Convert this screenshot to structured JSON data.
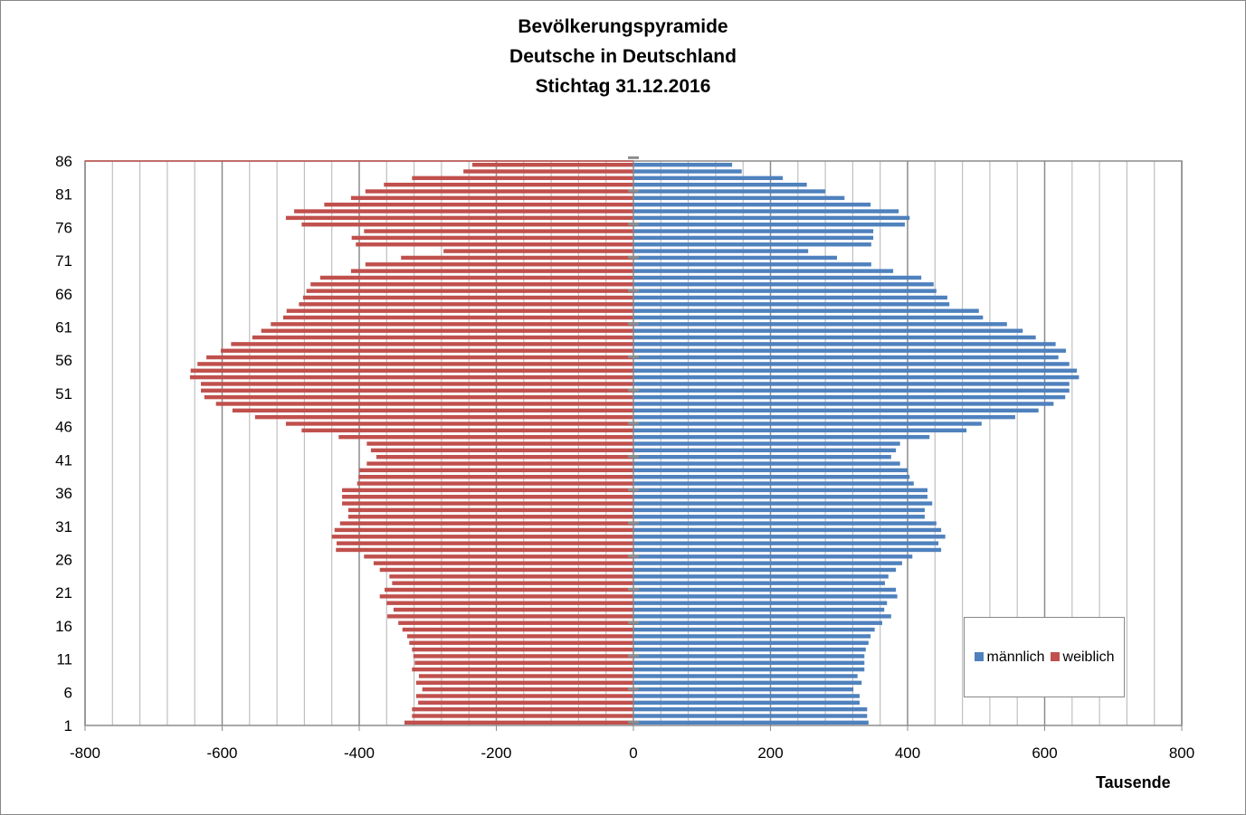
{
  "chart_data": {
    "type": "bar",
    "orientation": "horizontal-pyramid",
    "title": [
      "Bevölkerungspyramide",
      "Deutsche in Deutschland",
      "Stichtag 31.12.2016"
    ],
    "xlabel": "Tausende",
    "ylabel": "",
    "xlim": [
      -800,
      800
    ],
    "xticks": [
      -800,
      -600,
      -400,
      -200,
      0,
      200,
      400,
      600,
      800
    ],
    "ytick_labels": [
      1,
      6,
      11,
      16,
      21,
      26,
      31,
      36,
      41,
      46,
      51,
      56,
      61,
      66,
      71,
      76,
      81,
      86
    ],
    "grid": true,
    "legend_position": "bottom-right",
    "colors": {
      "male": "#4f81bd",
      "female": "#c0504d"
    },
    "ages": [
      1,
      2,
      3,
      4,
      5,
      6,
      7,
      8,
      9,
      10,
      11,
      12,
      13,
      14,
      15,
      16,
      17,
      18,
      19,
      20,
      21,
      22,
      23,
      24,
      25,
      26,
      27,
      28,
      29,
      30,
      31,
      32,
      33,
      34,
      35,
      36,
      37,
      38,
      39,
      40,
      41,
      42,
      43,
      44,
      45,
      46,
      47,
      48,
      49,
      50,
      51,
      52,
      53,
      54,
      55,
      56,
      57,
      58,
      59,
      60,
      61,
      62,
      63,
      64,
      65,
      66,
      67,
      68,
      69,
      70,
      71,
      72,
      73,
      74,
      75,
      76,
      77,
      78,
      79,
      80,
      81,
      82,
      83,
      84,
      85
    ],
    "series": [
      {
        "name": "männlich",
        "values": [
          343,
          341,
          341,
          330,
          330,
          321,
          333,
          327,
          337,
          337,
          337,
          339,
          343,
          346,
          352,
          363,
          376,
          366,
          370,
          385,
          383,
          367,
          372,
          383,
          392,
          407,
          449,
          445,
          455,
          449,
          442,
          425,
          425,
          436,
          429,
          429,
          409,
          403,
          400,
          389,
          376,
          383,
          389,
          432,
          486,
          508,
          557,
          591,
          613,
          630,
          636,
          636,
          650,
          647,
          636,
          620,
          631,
          616,
          587,
          568,
          545,
          510,
          504,
          461,
          458,
          442,
          438,
          420,
          379,
          347,
          297,
          255,
          347,
          350,
          350,
          396,
          403,
          387,
          346,
          308,
          280,
          253,
          218,
          158,
          144
        ]
      },
      {
        "name": "weiblich",
        "values": [
          -334,
          -323,
          -323,
          -314,
          -317,
          -308,
          -317,
          -313,
          -323,
          -319,
          -321,
          -323,
          -327,
          -330,
          -337,
          -343,
          -359,
          -350,
          -360,
          -370,
          -363,
          -352,
          -356,
          -370,
          -379,
          -393,
          -434,
          -433,
          -440,
          -436,
          -428,
          -416,
          -416,
          -425,
          -425,
          -425,
          -403,
          -401,
          -400,
          -389,
          -375,
          -383,
          -389,
          -430,
          -484,
          -507,
          -552,
          -585,
          -609,
          -626,
          -631,
          -631,
          -647,
          -646,
          -636,
          -623,
          -602,
          -587,
          -556,
          -543,
          -529,
          -511,
          -506,
          -488,
          -482,
          -477,
          -471,
          -457,
          -412,
          -391,
          -339,
          -277,
          -405,
          -411,
          -393,
          -484,
          -507,
          -495,
          -451,
          -412,
          -391,
          -364,
          -323,
          -248,
          -235
        ]
      }
    ]
  }
}
